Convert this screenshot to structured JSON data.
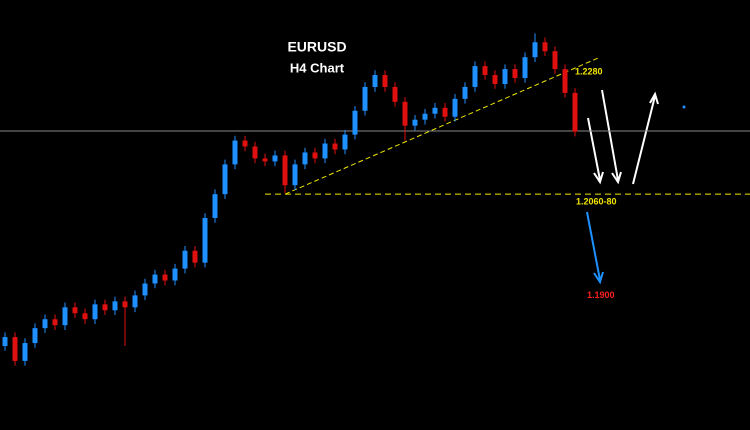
{
  "chart_data": {
    "type": "candlestick",
    "title": "EURUSD",
    "subtitle": "H4 Chart",
    "categories": [
      null,
      null,
      null,
      null,
      null,
      null,
      null,
      null,
      null,
      null,
      null,
      null,
      null,
      null,
      null,
      null,
      null,
      null,
      null,
      null,
      null,
      null,
      null,
      null,
      null,
      null,
      null,
      null,
      null,
      null,
      null,
      null,
      null,
      null,
      null,
      null,
      null,
      null,
      null,
      null,
      null,
      null,
      null,
      null,
      null,
      null,
      null,
      null,
      null,
      null,
      null,
      null,
      null,
      null,
      null,
      null,
      null,
      null
    ],
    "open": [
      1.1815,
      1.183,
      1.179,
      1.182,
      1.1845,
      1.186,
      1.185,
      1.188,
      1.187,
      1.186,
      1.1885,
      1.1875,
      1.189,
      1.188,
      1.19,
      1.192,
      1.1935,
      1.1925,
      1.1945,
      1.1975,
      1.1955,
      1.203,
      1.207,
      1.212,
      1.216,
      1.215,
      1.213,
      1.2125,
      1.2135,
      1.2085,
      1.212,
      1.214,
      1.213,
      1.2155,
      1.2145,
      1.217,
      1.221,
      1.225,
      1.227,
      1.225,
      1.2225,
      1.2185,
      1.2195,
      1.2205,
      1.2215,
      1.22,
      1.223,
      1.225,
      1.2285,
      1.227,
      1.2255,
      1.228,
      1.2265,
      1.23,
      1.2325,
      1.231,
      1.228,
      1.224
    ],
    "high": [
      1.1838,
      1.1838,
      1.1828,
      1.1853,
      1.1868,
      1.1868,
      1.1888,
      1.1888,
      1.1878,
      1.1893,
      1.1893,
      1.1898,
      1.1898,
      1.1908,
      1.1928,
      1.1943,
      1.1943,
      1.1953,
      1.1983,
      1.1983,
      1.2038,
      1.2078,
      1.2128,
      1.2168,
      1.2168,
      1.2158,
      1.2138,
      1.2143,
      1.2143,
      1.2128,
      1.2148,
      1.2148,
      1.2163,
      1.2163,
      1.2178,
      1.2218,
      1.2258,
      1.2278,
      1.2278,
      1.2258,
      1.2233,
      1.2203,
      1.2213,
      1.2223,
      1.2223,
      1.2238,
      1.2258,
      1.2293,
      1.2293,
      1.2278,
      1.2288,
      1.2288,
      1.2308,
      1.234,
      1.2333,
      1.2318,
      1.2288,
      1.2248
    ],
    "low": [
      1.1807,
      1.1782,
      1.1782,
      1.1812,
      1.1837,
      1.1842,
      1.1842,
      1.1862,
      1.1852,
      1.1852,
      1.1867,
      1.1867,
      1.1815,
      1.1872,
      1.1892,
      1.1912,
      1.1917,
      1.1917,
      1.1937,
      1.1947,
      1.1947,
      1.2022,
      1.2062,
      1.2112,
      1.2142,
      1.2122,
      1.2117,
      1.2117,
      1.2072,
      1.2077,
      1.2112,
      1.2122,
      1.2122,
      1.2137,
      1.2137,
      1.2162,
      1.2202,
      1.2242,
      1.2242,
      1.2217,
      1.216,
      1.2177,
      1.2187,
      1.2197,
      1.2192,
      1.2192,
      1.2222,
      1.2242,
      1.2262,
      1.2247,
      1.2247,
      1.2257,
      1.2257,
      1.2292,
      1.2302,
      1.2272,
      1.2232,
      1.2167
    ],
    "close": [
      1.183,
      1.179,
      1.182,
      1.1845,
      1.186,
      1.185,
      1.188,
      1.187,
      1.186,
      1.1885,
      1.1875,
      1.189,
      1.188,
      1.19,
      1.192,
      1.1935,
      1.1925,
      1.1945,
      1.1975,
      1.1955,
      1.203,
      1.207,
      1.212,
      1.216,
      1.215,
      1.213,
      1.2125,
      1.2135,
      1.2085,
      1.212,
      1.214,
      1.213,
      1.2155,
      1.2145,
      1.217,
      1.221,
      1.225,
      1.227,
      1.225,
      1.2225,
      1.2185,
      1.2195,
      1.2205,
      1.2215,
      1.22,
      1.223,
      1.225,
      1.2285,
      1.227,
      1.2255,
      1.228,
      1.2265,
      1.23,
      1.2325,
      1.231,
      1.228,
      1.224,
      1.2175
    ],
    "up_color": "#1e90ff",
    "down_color": "#e01010",
    "ylim": [
      1.1674,
      1.2396
    ],
    "price_line": 1.2176,
    "trendline": {
      "from": [
        28,
        1.207
      ],
      "to": [
        59.5,
        1.23
      ]
    },
    "annotations": [
      {
        "text": "1.2280",
        "value": 1.228,
        "color": "#f2e600"
      },
      {
        "text": "1.2060-80",
        "value": 1.207,
        "color": "#f2e600"
      },
      {
        "text": "1.1900",
        "value": 1.19,
        "color": "#ff2020"
      }
    ]
  }
}
